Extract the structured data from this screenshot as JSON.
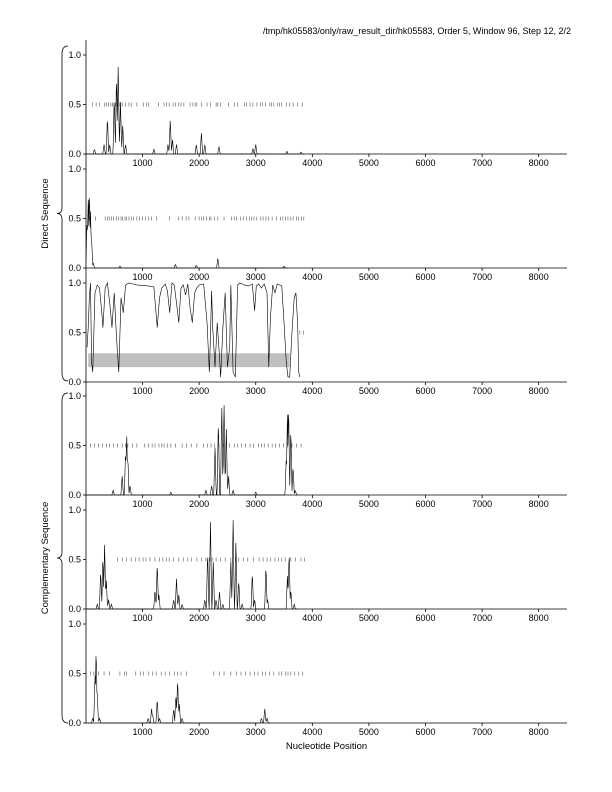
{
  "header": {
    "title": "/tmp/hk05583/only/raw_result_dir/hk05583, Order 5, Window 96, Step 12, 2/2"
  },
  "chart_data": {
    "type": "line",
    "xlabel": "Nucleotide Position",
    "group_labels": [
      "Direct Sequence",
      "Complementary Sequence"
    ],
    "xlim": [
      1,
      8500
    ],
    "ylim": [
      0,
      1
    ],
    "x_ticks": [
      1000,
      2000,
      3000,
      4000,
      5000,
      6000,
      7000,
      8000
    ],
    "y_ticks": [
      "0.0",
      "0.5",
      "1.0"
    ],
    "series_color": "#000000",
    "band_color": "#c0c0c0",
    "panels": [
      {
        "group": "Direct Sequence",
        "peaks": [
          [
            150,
            0.05
          ],
          [
            320,
            0.1
          ],
          [
            380,
            0.38
          ],
          [
            420,
            0.1
          ],
          [
            500,
            0.6
          ],
          [
            540,
            0.82
          ],
          [
            570,
            0.92
          ],
          [
            610,
            0.55
          ],
          [
            650,
            0.3
          ],
          [
            700,
            0.1
          ],
          [
            1200,
            0.05
          ],
          [
            1450,
            0.1
          ],
          [
            1490,
            0.35
          ],
          [
            1530,
            0.15
          ],
          [
            1600,
            0.1
          ],
          [
            1950,
            0.1
          ],
          [
            2040,
            0.22
          ],
          [
            2100,
            0.1
          ],
          [
            2350,
            0.08
          ],
          [
            2950,
            0.06
          ],
          [
            3000,
            0.1
          ],
          [
            3550,
            0.03
          ],
          [
            3800,
            0.02
          ]
        ],
        "ticks_y": 0.5,
        "ticks_x": [
          120,
          180,
          240,
          330,
          360,
          400,
          440,
          470,
          520,
          560,
          600,
          640,
          700,
          760,
          800,
          900,
          1020,
          1070,
          1110,
          1280,
          1380,
          1420,
          1470,
          1540,
          1580,
          1640,
          1680,
          1730,
          1840,
          1890,
          1930,
          1960,
          2040,
          2140,
          2200,
          2300,
          2330,
          2380,
          2520,
          2620,
          2680,
          2800,
          2840,
          2900,
          2950,
          3020,
          3080,
          3120,
          3170,
          3250,
          3280,
          3320,
          3380,
          3420,
          3460,
          3540,
          3600,
          3660,
          3740,
          3820
        ]
      },
      {
        "group": "Direct Sequence",
        "peaks": [
          [
            20,
            0.5
          ],
          [
            40,
            0.72
          ],
          [
            60,
            0.82
          ],
          [
            80,
            0.6
          ],
          [
            100,
            0.3
          ],
          [
            130,
            0.05
          ],
          [
            600,
            0.02
          ],
          [
            1580,
            0.04
          ],
          [
            1950,
            0.03
          ],
          [
            2330,
            0.1
          ],
          [
            3500,
            0.02
          ]
        ],
        "ticks_y": 0.5,
        "ticks_x": [
          60,
          170,
          340,
          380,
          410,
          450,
          490,
          540,
          580,
          620,
          650,
          690,
          720,
          760,
          800,
          840,
          900,
          950,
          1000,
          1050,
          1110,
          1160,
          1250,
          1480,
          1640,
          1700,
          1770,
          1820,
          1930,
          2000,
          2040,
          2080,
          2130,
          2180,
          2210,
          2270,
          2330,
          2440,
          2570,
          2620,
          2660,
          2730,
          2780,
          2840,
          2890,
          2930,
          2970,
          3020,
          3090,
          3130,
          3180,
          3230,
          3290,
          3370,
          3440,
          3480,
          3530,
          3570,
          3620,
          3660,
          3720,
          3760,
          3810,
          3850
        ]
      },
      {
        "group": "",
        "band": [
          40,
          3600,
          0.15,
          0.29
        ],
        "trace": [
          [
            20,
            0.35
          ],
          [
            40,
            0.55
          ],
          [
            60,
            0.85
          ],
          [
            80,
            1.0
          ],
          [
            100,
            0.2
          ],
          [
            120,
            0.1
          ],
          [
            160,
            0.9
          ],
          [
            200,
            0.98
          ],
          [
            240,
            0.95
          ],
          [
            280,
            0.7
          ],
          [
            300,
            0.55
          ],
          [
            340,
            0.95
          ],
          [
            380,
            1.0
          ],
          [
            420,
            0.8
          ],
          [
            460,
            0.55
          ],
          [
            500,
            0.9
          ],
          [
            540,
            0.45
          ],
          [
            580,
            0.1
          ],
          [
            620,
            0.85
          ],
          [
            660,
            0.7
          ],
          [
            700,
            0.98
          ],
          [
            760,
            1.0
          ],
          [
            900,
            0.98
          ],
          [
            1100,
            0.97
          ],
          [
            1200,
            0.96
          ],
          [
            1260,
            0.55
          ],
          [
            1300,
            0.85
          ],
          [
            1340,
            0.95
          ],
          [
            1400,
            0.99
          ],
          [
            1440,
            0.92
          ],
          [
            1480,
            0.7
          ],
          [
            1520,
            1.0
          ],
          [
            1560,
            0.98
          ],
          [
            1600,
            0.8
          ],
          [
            1640,
            0.6
          ],
          [
            1680,
            0.95
          ],
          [
            1720,
            0.98
          ],
          [
            1760,
            0.88
          ],
          [
            1800,
            0.99
          ],
          [
            1840,
            0.75
          ],
          [
            1880,
            0.6
          ],
          [
            1920,
            0.9
          ],
          [
            1960,
            0.95
          ],
          [
            2000,
            0.98
          ],
          [
            2080,
            0.99
          ],
          [
            2140,
            0.6
          ],
          [
            2180,
            0.1
          ],
          [
            2200,
            0.45
          ],
          [
            2220,
            0.92
          ],
          [
            2240,
            0.55
          ],
          [
            2280,
            0.15
          ],
          [
            2320,
            0.6
          ],
          [
            2360,
            0.25
          ],
          [
            2380,
            0.05
          ],
          [
            2420,
            0.55
          ],
          [
            2460,
            0.9
          ],
          [
            2500,
            0.15
          ],
          [
            2540,
            0.35
          ],
          [
            2560,
            0.98
          ],
          [
            2600,
            0.1
          ],
          [
            2640,
            0.05
          ],
          [
            2680,
            0.98
          ],
          [
            2720,
            1.0
          ],
          [
            2800,
            0.98
          ],
          [
            2880,
            0.97
          ],
          [
            2940,
            0.99
          ],
          [
            2980,
            0.72
          ],
          [
            3010,
            0.97
          ],
          [
            3050,
            0.99
          ],
          [
            3100,
            0.95
          ],
          [
            3150,
            0.99
          ],
          [
            3200,
            0.9
          ],
          [
            3230,
            0.15
          ],
          [
            3260,
            0.65
          ],
          [
            3300,
            0.98
          ],
          [
            3340,
            0.9
          ],
          [
            3380,
            0.99
          ],
          [
            3420,
            0.98
          ],
          [
            3460,
            0.97
          ],
          [
            3500,
            0.6
          ],
          [
            3540,
            0.2
          ],
          [
            3570,
            0.05
          ],
          [
            3600,
            0.05
          ],
          [
            3640,
            0.5
          ],
          [
            3680,
            0.85
          ],
          [
            3710,
            0.9
          ],
          [
            3740,
            0.6
          ],
          [
            3760,
            0.1
          ],
          [
            3780,
            0.05
          ]
        ],
        "ticks_y": 0.5,
        "ticks_x": [
          3780,
          3840
        ]
      },
      {
        "group": "Complementary Sequence",
        "peaks": [
          [
            480,
            0.05
          ],
          [
            640,
            0.2
          ],
          [
            700,
            0.45
          ],
          [
            720,
            0.62
          ],
          [
            740,
            0.4
          ],
          [
            780,
            0.1
          ],
          [
            1500,
            0.03
          ],
          [
            2120,
            0.05
          ],
          [
            2220,
            0.1
          ],
          [
            2280,
            0.5
          ],
          [
            2340,
            0.78
          ],
          [
            2400,
            0.92
          ],
          [
            2440,
            0.95
          ],
          [
            2480,
            0.7
          ],
          [
            2520,
            0.2
          ],
          [
            2600,
            0.05
          ],
          [
            3000,
            0.03
          ],
          [
            3540,
            0.4
          ],
          [
            3560,
            0.85
          ],
          [
            3580,
            0.94
          ],
          [
            3620,
            0.7
          ],
          [
            3660,
            0.3
          ],
          [
            3700,
            0.05
          ]
        ],
        "ticks_y": 0.5,
        "ticks_x": [
          80,
          150,
          220,
          290,
          360,
          420,
          490,
          560,
          640,
          700,
          740,
          820,
          900,
          1040,
          1110,
          1170,
          1220,
          1290,
          1340,
          1380,
          1440,
          1500,
          1580,
          1700,
          1780,
          1860,
          1960,
          2080,
          2150,
          2210,
          2270,
          2350,
          2430,
          2540,
          2620,
          2680,
          2750,
          2820,
          2900,
          2960,
          3050,
          3100,
          3150,
          3220,
          3290,
          3350,
          3420,
          3490,
          3560,
          3640,
          3720,
          3800
        ]
      },
      {
        "group": "Complementary Sequence",
        "peaks": [
          [
            200,
            0.05
          ],
          [
            260,
            0.4
          ],
          [
            300,
            0.55
          ],
          [
            330,
            0.68
          ],
          [
            360,
            0.3
          ],
          [
            400,
            0.1
          ],
          [
            450,
            0.05
          ],
          [
            1220,
            0.2
          ],
          [
            1260,
            0.48
          ],
          [
            1290,
            0.15
          ],
          [
            1550,
            0.1
          ],
          [
            1600,
            0.32
          ],
          [
            1640,
            0.15
          ],
          [
            1700,
            0.05
          ],
          [
            2100,
            0.1
          ],
          [
            2150,
            0.6
          ],
          [
            2200,
            0.92
          ],
          [
            2250,
            0.5
          ],
          [
            2300,
            0.1
          ],
          [
            2360,
            0.18
          ],
          [
            2420,
            0.05
          ],
          [
            2560,
            0.5
          ],
          [
            2600,
            0.94
          ],
          [
            2650,
            0.7
          ],
          [
            2700,
            0.3
          ],
          [
            2760,
            0.05
          ],
          [
            2940,
            0.38
          ],
          [
            2980,
            0.1
          ],
          [
            3180,
            0.45
          ],
          [
            3210,
            0.1
          ],
          [
            3560,
            0.35
          ],
          [
            3590,
            0.6
          ],
          [
            3620,
            0.2
          ],
          [
            3680,
            0.05
          ]
        ],
        "ticks_y": 0.5,
        "ticks_x": [
          560,
          640,
          720,
          800,
          880,
          940,
          1010,
          1060,
          1130,
          1220,
          1300,
          1360,
          1420,
          1470,
          1550,
          1640,
          1720,
          1800,
          1860,
          1960,
          2040,
          2120,
          2180,
          2230,
          2300,
          2380,
          2460,
          2560,
          2640,
          2700,
          2780,
          2860,
          2960,
          3060,
          3130,
          3200,
          3260,
          3340,
          3400,
          3460,
          3520,
          3620,
          3700,
          3800,
          3860
        ]
      },
      {
        "group": "",
        "peaks": [
          [
            120,
            0.05
          ],
          [
            160,
            0.5
          ],
          [
            180,
            0.78
          ],
          [
            200,
            0.3
          ],
          [
            240,
            0.05
          ],
          [
            1100,
            0.05
          ],
          [
            1160,
            0.15
          ],
          [
            1180,
            0.08
          ],
          [
            1260,
            0.25
          ],
          [
            1300,
            0.05
          ],
          [
            1550,
            0.15
          ],
          [
            1590,
            0.3
          ],
          [
            1620,
            0.46
          ],
          [
            1650,
            0.2
          ],
          [
            1700,
            0.05
          ],
          [
            3100,
            0.05
          ],
          [
            3160,
            0.15
          ],
          [
            3200,
            0.05
          ]
        ],
        "ticks_y": 0.5,
        "ticks_x": [
          80,
          140,
          220,
          320,
          420,
          600,
          680,
          720,
          880,
          960,
          1020,
          1110,
          1180,
          1240,
          1330,
          1400,
          1480,
          1560,
          1620,
          1680,
          1780,
          2260,
          2360,
          2440,
          2560,
          2660,
          2740,
          2820,
          2900,
          2980,
          3040,
          3120,
          3170,
          3240,
          3320,
          3410,
          3460,
          3530,
          3570,
          3620,
          3690,
          3760,
          3830
        ]
      }
    ]
  }
}
